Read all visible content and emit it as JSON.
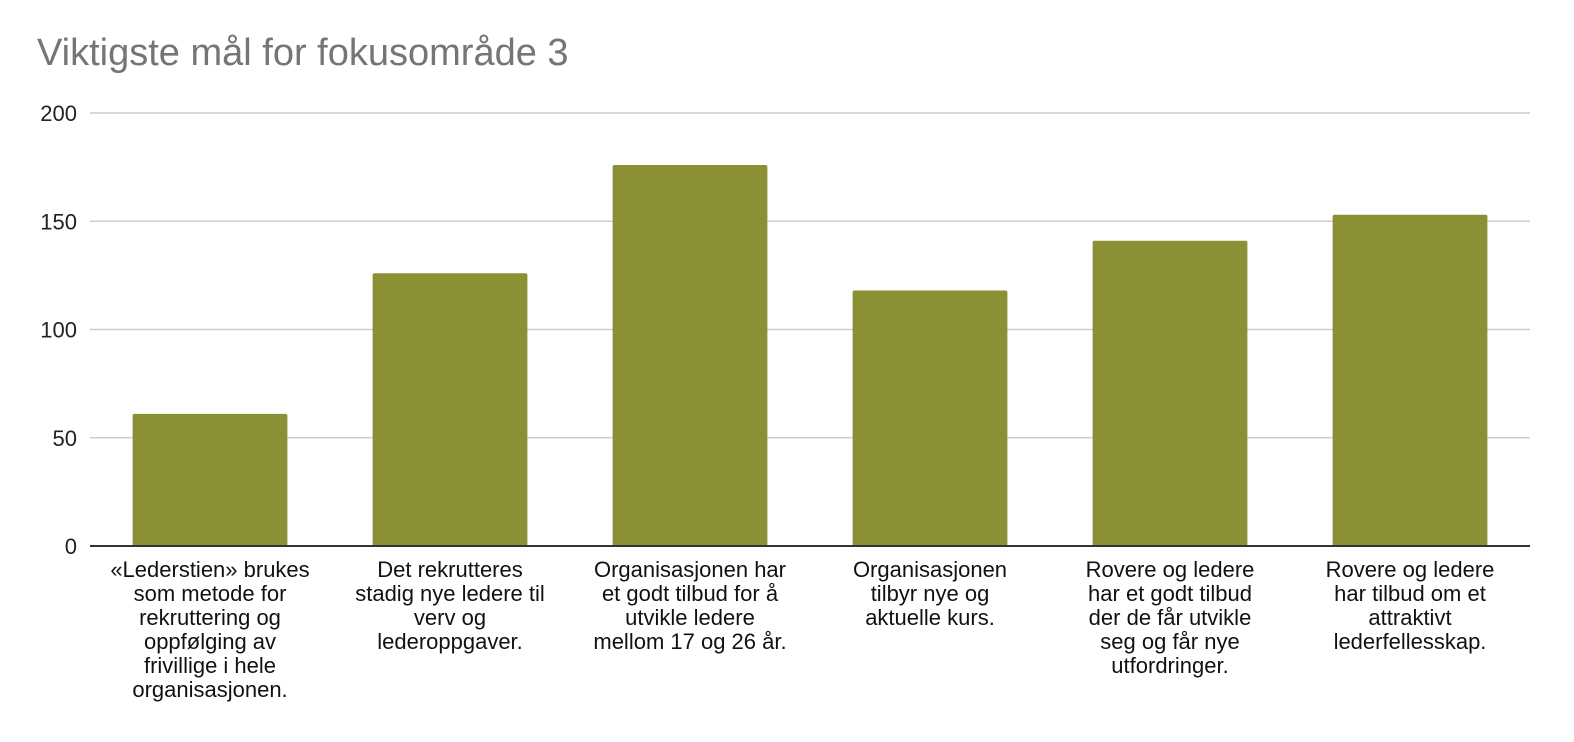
{
  "chart_data": {
    "type": "bar",
    "title": "Viktigste mål for fokusområde 3",
    "xlabel": "",
    "ylabel": "",
    "categories": [
      "«Lederstien» brukes som metode for rekruttering og oppfølging av frivillige i hele organisasjonen.",
      "Det rekrutteres stadig nye ledere til verv og lederoppgaver.",
      "Organisasjonen har et godt tilbud for å utvikle ledere mellom 17 og 26 år.",
      "Organisasjonen tilbyr nye og aktuelle kurs.",
      "Rovere og ledere har et godt tilbud der de får utvikle seg og får nye utfordringer.",
      "Rovere og ledere har tilbud om et attraktivt lederfellesskap."
    ],
    "category_lines": [
      [
        "«Lederstien» brukes",
        "som metode for",
        "rekruttering og",
        "oppfølging av",
        "frivillige i hele",
        "organisasjonen."
      ],
      [
        "Det rekrutteres",
        "stadig nye ledere til",
        "verv og",
        "lederoppgaver."
      ],
      [
        "Organisasjonen har",
        "et godt tilbud for å",
        "utvikle ledere",
        "mellom 17 og 26 år."
      ],
      [
        "Organisasjonen",
        "tilbyr nye og",
        "aktuelle kurs."
      ],
      [
        "Rovere og ledere",
        "har et godt tilbud",
        "der de får utvikle",
        "seg og får nye",
        "utfordringer."
      ],
      [
        "Rovere og ledere",
        "har tilbud om et",
        "attraktivt",
        "lederfellesskap."
      ]
    ],
    "values": [
      61,
      126,
      176,
      118,
      141,
      153
    ],
    "ylim": [
      0,
      200
    ],
    "yticks": [
      0,
      50,
      100,
      150,
      200
    ],
    "grid": true,
    "legend": "none",
    "colors": {
      "bar": "#8c9035",
      "grid": "#cccccc",
      "axis": "#333333",
      "title": "#757575"
    }
  }
}
